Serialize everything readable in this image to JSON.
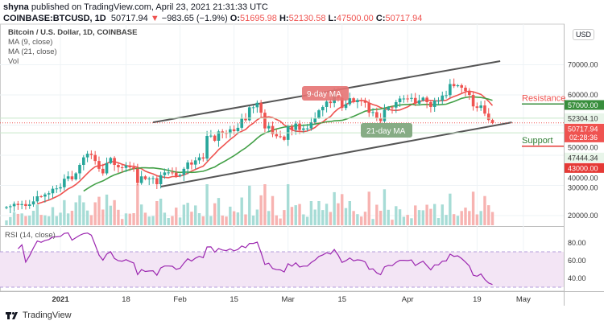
{
  "header": {
    "author": "shyna",
    "published": "published on TradingView.com, April 23, 2021 21:31:33 UTC",
    "symbol": "COINBASE:BTCUSD, 1D",
    "last": "50717.94",
    "change": "−983.65 (−1.9%)",
    "o_label": "O:",
    "o": "51695.98",
    "h_label": "H:",
    "h": "52130.58",
    "l_label": "L:",
    "l": "47500.00",
    "c_label": "C:",
    "c": "50717.94"
  },
  "legend": {
    "title": "Bitcoin / U.S. Dollar, 1D, COINBASE",
    "ma9": "MA (9, close)",
    "ma21": "MA (21, close)",
    "vol": "Vol"
  },
  "currency": "USD",
  "footer": {
    "brand": "TradingView"
  },
  "colors": {
    "up": "#26a69a",
    "down": "#ef5350",
    "ma9": "#ef5350",
    "ma21": "#43a047",
    "rsi": "#9c27b0",
    "rsi_band": "#e1bee7",
    "channel": "#555555",
    "resistance": "#388e3c",
    "support": "#e53935"
  },
  "chart_data": {
    "type": "candlestick",
    "start_date": "2020-12-18",
    "price_ticks": [
      20000,
      30000,
      40000,
      50000,
      60000,
      70000
    ],
    "price_tick_labels": [
      "20000.00",
      "30000.00",
      "40000.00",
      "50000.00",
      "60000.00",
      "70000.00"
    ],
    "ylim": [
      17000,
      76000
    ],
    "x_ticks": [
      {
        "date": "2021-01-01",
        "label": "2021"
      },
      {
        "date": "2021-01-18",
        "label": "18"
      },
      {
        "date": "2021-02-01",
        "label": "Feb"
      },
      {
        "date": "2021-02-15",
        "label": "15"
      },
      {
        "date": "2021-03-01",
        "label": "Mar"
      },
      {
        "date": "2021-03-15",
        "label": "15"
      },
      {
        "date": "2021-04-01",
        "label": "Apr"
      },
      {
        "date": "2021-04-19",
        "label": "19"
      },
      {
        "date": "2021-05-01",
        "label": "May"
      }
    ],
    "closes_thousands": [
      22.8,
      23.1,
      23.9,
      23.5,
      23.8,
      23.2,
      23.7,
      24.7,
      26.4,
      26.3,
      27.0,
      27.4,
      28.9,
      29.0,
      29.4,
      32.2,
      33.0,
      32.0,
      34.0,
      36.8,
      39.3,
      40.5,
      40.1,
      38.1,
      35.5,
      34.0,
      37.4,
      39.1,
      36.8,
      36.0,
      35.8,
      36.6,
      36.0,
      35.5,
      30.8,
      33.0,
      32.1,
      32.3,
      32.4,
      30.4,
      33.4,
      34.3,
      34.3,
      34.2,
      33.1,
      33.5,
      35.5,
      37.6,
      36.9,
      38.3,
      39.3,
      38.9,
      46.4,
      46.5,
      44.8,
      47.9,
      47.4,
      47.2,
      48.6,
      48.0,
      49.1,
      52.1,
      51.6,
      55.9,
      55.9,
      57.4,
      54.1,
      48.9,
      49.7,
      47.0,
      46.3,
      46.2,
      45.1,
      49.6,
      48.4,
      50.5,
      48.4,
      48.9,
      48.9,
      50.9,
      52.4,
      54.9,
      56.0,
      57.8,
      57.3,
      61.2,
      59.0,
      55.7,
      56.9,
      58.9,
      57.6,
      58.3,
      58.1,
      57.4,
      54.1,
      54.3,
      52.3,
      51.3,
      55.1,
      55.9,
      55.8,
      57.6,
      58.8,
      58.8,
      58.7,
      59.0,
      57.1,
      58.2,
      59.1,
      57.6,
      56.0,
      58.1,
      58.1,
      59.8,
      59.9,
      63.6,
      62.9,
      63.2,
      62.4,
      61.3,
      60.0,
      56.2,
      55.7,
      56.5,
      53.8,
      51.7,
      50.7
    ],
    "ma_periods": [
      9,
      21
    ],
    "channel": {
      "upper": [
        {
          "date": "2021-01-25",
          "price": 50900
        },
        {
          "date": "2021-04-25",
          "price": 71200
        }
      ],
      "lower": [
        {
          "date": "2021-01-27",
          "price": 29600
        },
        {
          "date": "2021-04-28",
          "price": 50900
        }
      ]
    },
    "levels": [
      {
        "label": "Resistance",
        "price": 57000,
        "price_label": "57000.00"
      },
      {
        "label": "Support",
        "price": 43000,
        "price_label": "43000.00"
      }
    ],
    "price_marks": [
      {
        "price": 52304.1,
        "label": "52304.10"
      },
      {
        "price": 47444.34,
        "label": "47444.34"
      }
    ],
    "last_price": {
      "label": "50717.94",
      "countdown": "02:28:36",
      "price": 50717.94
    },
    "annotations": [
      {
        "text": "9-day MA",
        "kind": "ma9"
      },
      {
        "text": "21-day MA",
        "kind": "ma21"
      }
    ],
    "rsi": {
      "label": "RSI (14, close)",
      "period": 14,
      "ticks": [
        40,
        60,
        80
      ],
      "tick_labels": [
        "40.00",
        "60.00",
        "80.00"
      ],
      "band": [
        30,
        70
      ]
    }
  }
}
